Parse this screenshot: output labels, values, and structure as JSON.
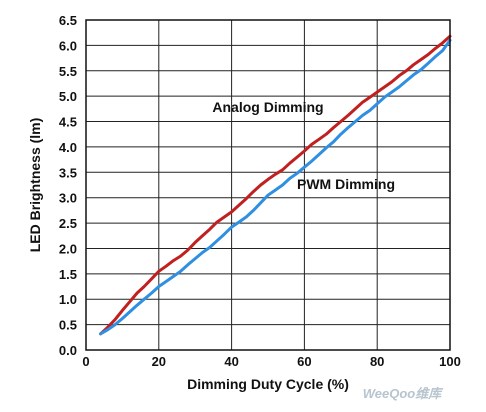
{
  "chart_data": {
    "type": "line",
    "title": "",
    "xlabel": "Dimming Duty Cycle (%)",
    "ylabel": "LED Brightness (lm)",
    "xlim": [
      0,
      100
    ],
    "ylim": [
      0,
      6.5
    ],
    "xticks": [
      "0",
      "20",
      "40",
      "60",
      "80",
      "100"
    ],
    "yticks": [
      "0.0",
      "0.5",
      "1.0",
      "1.5",
      "2.0",
      "2.5",
      "3.0",
      "3.5",
      "4.0",
      "4.5",
      "5.0",
      "5.5",
      "6.0",
      "6.5"
    ],
    "grid": true,
    "colors": {
      "analog": "#c0201f",
      "pwm": "#2f8fe0"
    },
    "series": [
      {
        "name": "Analog Dimming",
        "x": [
          4,
          6,
          8,
          10,
          12,
          14,
          16,
          18,
          20,
          22,
          24,
          26,
          28,
          30,
          32,
          34,
          36,
          38,
          40,
          42,
          44,
          46,
          48,
          50,
          52,
          54,
          56,
          58,
          60,
          62,
          64,
          66,
          68,
          70,
          72,
          74,
          76,
          78,
          80,
          82,
          84,
          86,
          88,
          90,
          92,
          94,
          96,
          98,
          100
        ],
        "values": [
          0.32,
          0.45,
          0.6,
          0.78,
          0.95,
          1.12,
          1.25,
          1.4,
          1.55,
          1.65,
          1.76,
          1.85,
          1.97,
          2.12,
          2.25,
          2.38,
          2.52,
          2.62,
          2.72,
          2.85,
          2.98,
          3.12,
          3.25,
          3.36,
          3.46,
          3.55,
          3.68,
          3.8,
          3.92,
          4.05,
          4.15,
          4.25,
          4.38,
          4.5,
          4.62,
          4.75,
          4.88,
          4.98,
          5.08,
          5.18,
          5.28,
          5.4,
          5.5,
          5.62,
          5.72,
          5.82,
          5.94,
          6.05,
          6.18
        ]
      },
      {
        "name": "PWM Dimming",
        "x": [
          4,
          6,
          8,
          10,
          12,
          14,
          16,
          18,
          20,
          22,
          24,
          26,
          28,
          30,
          32,
          34,
          36,
          38,
          40,
          42,
          44,
          46,
          48,
          50,
          52,
          54,
          56,
          58,
          60,
          62,
          64,
          66,
          68,
          70,
          72,
          74,
          76,
          78,
          80,
          82,
          84,
          86,
          88,
          90,
          92,
          94,
          96,
          98,
          100
        ],
        "values": [
          0.32,
          0.4,
          0.5,
          0.62,
          0.75,
          0.88,
          1.0,
          1.12,
          1.25,
          1.35,
          1.45,
          1.55,
          1.68,
          1.8,
          1.92,
          2.02,
          2.15,
          2.28,
          2.42,
          2.52,
          2.62,
          2.75,
          2.9,
          3.05,
          3.15,
          3.25,
          3.38,
          3.48,
          3.6,
          3.72,
          3.85,
          3.98,
          4.1,
          4.25,
          4.38,
          4.5,
          4.62,
          4.72,
          4.85,
          4.98,
          5.08,
          5.18,
          5.3,
          5.42,
          5.52,
          5.65,
          5.78,
          5.9,
          6.1
        ]
      }
    ],
    "annotations": [
      "Analog Dimming",
      "PWM Dimming"
    ]
  },
  "watermark": "WeeQoo维库"
}
